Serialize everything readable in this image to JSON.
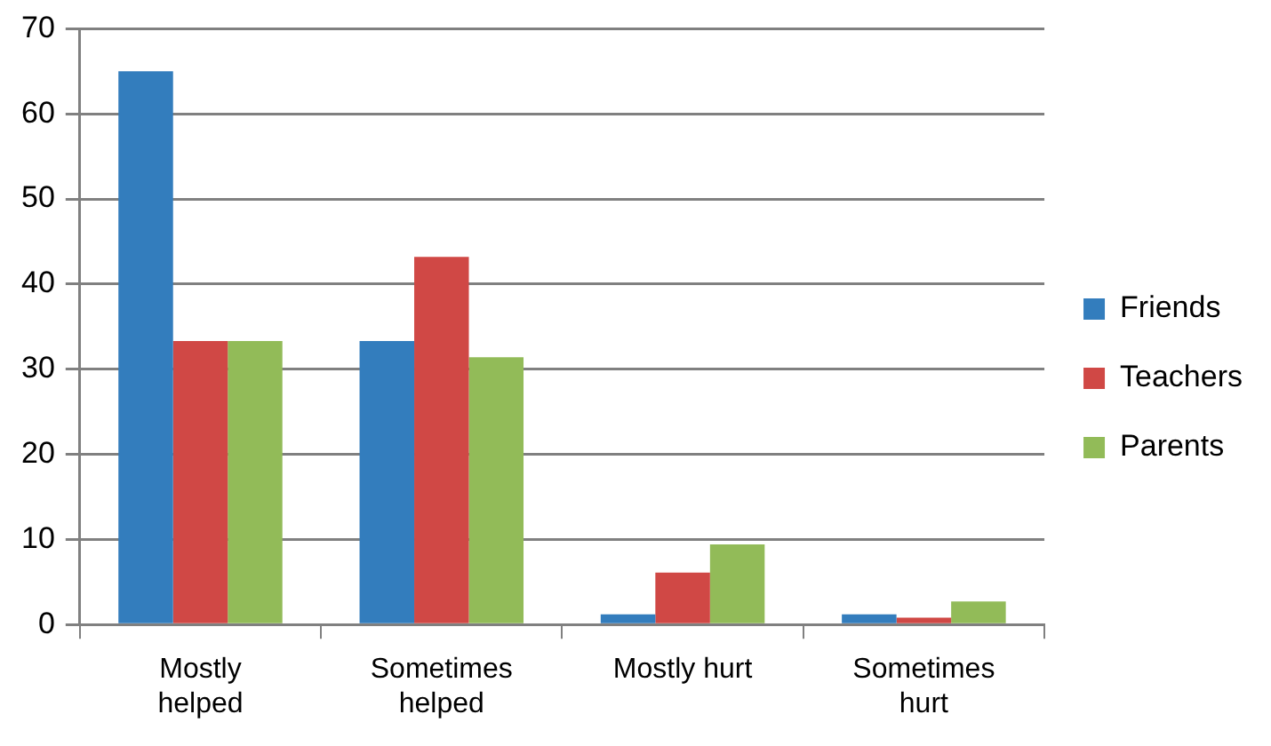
{
  "chart_data": {
    "type": "bar",
    "categories": [
      "Mostly helped",
      "Sometimes helped",
      "Mostly hurt",
      "Sometimes hurt"
    ],
    "series": [
      {
        "name": "Friends",
        "color": "#337dbd",
        "values": [
          65,
          33.3,
          1.2,
          1.2
        ]
      },
      {
        "name": "Teachers",
        "color": "#d04845",
        "values": [
          33.3,
          43.2,
          6.1,
          0.8
        ]
      },
      {
        "name": "Parents",
        "color": "#92bb58",
        "values": [
          33.3,
          31.4,
          9.4,
          2.7
        ]
      }
    ],
    "ylim": [
      0,
      70
    ],
    "yticks": [
      0,
      10,
      20,
      30,
      40,
      50,
      60,
      70
    ],
    "grid": "y",
    "legend": "right"
  }
}
